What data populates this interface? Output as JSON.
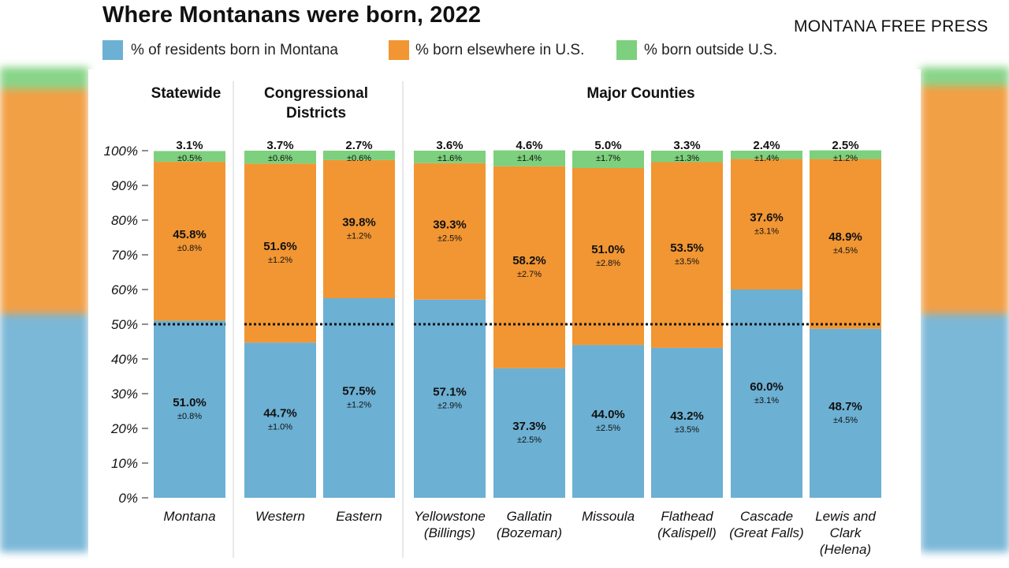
{
  "header": {
    "title": "Where Montanans were born, 2022",
    "brand": "MONTANA FREE PRESS"
  },
  "chart_data": {
    "type": "bar",
    "stacked": true,
    "title": "Where Montanans were born, 2022",
    "ylim": [
      0,
      100
    ],
    "y_ticks": [
      "0%",
      "10%",
      "20%",
      "30%",
      "40%",
      "50%",
      "60%",
      "70%",
      "80%",
      "90%",
      "100%"
    ],
    "reference_line": {
      "value": 50,
      "style": "dotted"
    },
    "legend": [
      {
        "name": "% of residents born in Montana",
        "color": "#6cb0d3"
      },
      {
        "name": "% born elsewhere in U.S.",
        "color": "#f19633"
      },
      {
        "name": "% born outside U.S.",
        "color": "#7dd07d"
      }
    ],
    "groups": [
      {
        "title": [
          "Statewide"
        ],
        "bars": [
          {
            "label": [
              "Montana"
            ],
            "montana": {
              "value": 51.0,
              "text": "51.0%",
              "moe": "±0.8%"
            },
            "elsewhere": {
              "value": 45.8,
              "text": "45.8%",
              "moe": "±0.8%"
            },
            "outside": {
              "value": 3.1,
              "text": "3.1%",
              "moe": "±0.5%"
            }
          }
        ]
      },
      {
        "title": [
          "Congressional",
          "Districts"
        ],
        "bars": [
          {
            "label": [
              "Western"
            ],
            "montana": {
              "value": 44.7,
              "text": "44.7%",
              "moe": "±1.0%"
            },
            "elsewhere": {
              "value": 51.6,
              "text": "51.6%",
              "moe": "±1.2%"
            },
            "outside": {
              "value": 3.7,
              "text": "3.7%",
              "moe": "±0.6%"
            }
          },
          {
            "label": [
              "Eastern"
            ],
            "montana": {
              "value": 57.5,
              "text": "57.5%",
              "moe": "±1.2%"
            },
            "elsewhere": {
              "value": 39.8,
              "text": "39.8%",
              "moe": "±1.2%"
            },
            "outside": {
              "value": 2.7,
              "text": "2.7%",
              "moe": "±0.6%"
            }
          }
        ]
      },
      {
        "title": [
          "Major Counties"
        ],
        "bars": [
          {
            "label": [
              "Yellowstone",
              "(Billings)"
            ],
            "montana": {
              "value": 57.1,
              "text": "57.1%",
              "moe": "±2.9%"
            },
            "elsewhere": {
              "value": 39.3,
              "text": "39.3%",
              "moe": "±2.5%"
            },
            "outside": {
              "value": 3.6,
              "text": "3.6%",
              "moe": "±1.6%"
            }
          },
          {
            "label": [
              "Gallatin",
              "(Bozeman)"
            ],
            "montana": {
              "value": 37.3,
              "text": "37.3%",
              "moe": "±2.5%"
            },
            "elsewhere": {
              "value": 58.2,
              "text": "58.2%",
              "moe": "±2.7%"
            },
            "outside": {
              "value": 4.6,
              "text": "4.6%",
              "moe": "±1.4%"
            }
          },
          {
            "label": [
              "Missoula"
            ],
            "montana": {
              "value": 44.0,
              "text": "44.0%",
              "moe": "±2.5%"
            },
            "elsewhere": {
              "value": 51.0,
              "text": "51.0%",
              "moe": "±2.8%"
            },
            "outside": {
              "value": 5.0,
              "text": "5.0%",
              "moe": "±1.7%"
            }
          },
          {
            "label": [
              "Flathead",
              "(Kalispell)"
            ],
            "montana": {
              "value": 43.2,
              "text": "43.2%",
              "moe": "±3.5%"
            },
            "elsewhere": {
              "value": 53.5,
              "text": "53.5%",
              "moe": "±3.5%"
            },
            "outside": {
              "value": 3.3,
              "text": "3.3%",
              "moe": "±1.3%"
            }
          },
          {
            "label": [
              "Cascade",
              "(Great Falls)"
            ],
            "montana": {
              "value": 60.0,
              "text": "60.0%",
              "moe": "±3.1%"
            },
            "elsewhere": {
              "value": 37.6,
              "text": "37.6%",
              "moe": "±3.1%"
            },
            "outside": {
              "value": 2.4,
              "text": "2.4%",
              "moe": "±1.4%"
            }
          },
          {
            "label": [
              "Lewis and",
              "Clark",
              "(Helena)"
            ],
            "montana": {
              "value": 48.7,
              "text": "48.7%",
              "moe": "±4.5%"
            },
            "elsewhere": {
              "value": 48.9,
              "text": "48.9%",
              "moe": "±4.5%"
            },
            "outside": {
              "value": 2.5,
              "text": "2.5%",
              "moe": "±1.2%"
            }
          }
        ]
      }
    ]
  }
}
